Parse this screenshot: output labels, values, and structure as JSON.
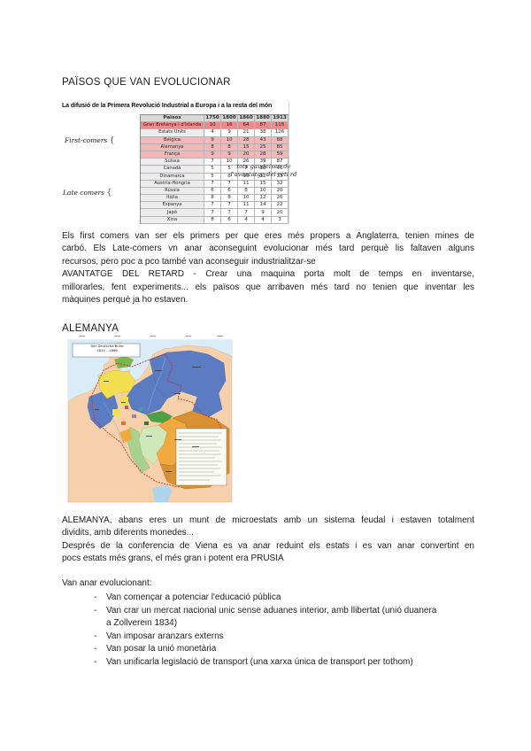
{
  "doc": {
    "title": "PAÏSOS QUE VAN EVOLUCIONAR",
    "alemanya_heading": "ALEMANYA"
  },
  "table_figure": {
    "title": "La difusió de la Primera Revolució Industrial a Europa i a la resta del món",
    "columns": [
      "Països",
      "1750",
      "1800",
      "1860",
      "1880",
      "1913"
    ],
    "rows": [
      {
        "name": "Gran Bretanya i d'Irlanda",
        "values": [
          10,
          16,
          64,
          87,
          115
        ],
        "highlight": "strong"
      },
      {
        "name": "Estats Units",
        "values": [
          4,
          9,
          21,
          38,
          126
        ],
        "highlight": "none"
      },
      {
        "name": "Bèlgica",
        "values": [
          9,
          10,
          28,
          43,
          88
        ],
        "highlight": "red"
      },
      {
        "name": "Alemanya",
        "values": [
          8,
          8,
          15,
          25,
          85
        ],
        "highlight": "red"
      },
      {
        "name": "França",
        "values": [
          9,
          9,
          20,
          28,
          59
        ],
        "highlight": "red"
      },
      {
        "name": "Suïssa",
        "values": [
          7,
          10,
          26,
          39,
          87
        ],
        "highlight": "none"
      },
      {
        "name": "Canadà",
        "values": [
          5,
          5,
          7,
          10,
          46
        ],
        "highlight": "none"
      },
      {
        "name": "Dinamarca",
        "values": [
          5,
          8,
          10,
          12,
          33
        ],
        "highlight": "none"
      },
      {
        "name": "Àustria-Hongria",
        "values": [
          7,
          7,
          11,
          15,
          32
        ],
        "highlight": "none"
      },
      {
        "name": "Rússia",
        "values": [
          6,
          6,
          8,
          10,
          20
        ],
        "highlight": "none"
      },
      {
        "name": "Itàlia",
        "values": [
          8,
          8,
          10,
          12,
          26
        ],
        "highlight": "none"
      },
      {
        "name": "Espanya",
        "values": [
          7,
          7,
          11,
          14,
          22
        ],
        "highlight": "none"
      },
      {
        "name": "Japó",
        "values": [
          7,
          7,
          7,
          9,
          20
        ],
        "highlight": "none"
      },
      {
        "name": "Xina",
        "values": [
          8,
          6,
          4,
          4,
          3
        ],
        "highlight": "none"
      }
    ],
    "group_label_first": "First-comers",
    "group_label_late": "Late comers",
    "brace": "{",
    "annotation": "tots gaudeixen de\nl'avantatge del retard"
  },
  "map_figure": {
    "title_box": "Der Deutsche Bund\n1815 – 1866"
  },
  "paragraphs": {
    "p1": "Els first comers van ser els primers per que eres més propers a Anglaterra, tenien mines de\ncarbó. Els Late-comers vn anar aconseguint evolucionar més tard perquè lis faltaven alguns\nrecursos, pero poc a pco també van aconseguir industrialitzar-se\nAVANTATGE DEL RETARD - Crear una maquina porta molt de temps en inventarse,\nmillorarles, fent experiments... els països que arribaven més tard no tenien que inventar les\nmàquines perquè ja ho estaven.",
    "p2": "ALEMANYA, abans eres un munt de microestats amb un sistema feudal i estaven totalment\ndividits, amb diferents monedes...\nDesprés de la conferencia de Viena es va anar reduint els estats i es van anar convertint en\npocs estats més grans, el més gran i potent era PRUSIA",
    "list_intro": "Van anar evolucionant:",
    "list_dash": "-",
    "bullets": [
      "Van començar a potenciar l'educació pública",
      "Van crar un mercat nacional unic sense aduanes interior, amb llibertat (unió duanera\na Zollverein 1834)",
      "Van imposar aranzars externs",
      "Van posar la unió monetària",
      "Van unificarla legislació de transport (una xarxa única de transport per tothom)"
    ]
  },
  "colors": {
    "highlight_strong": "#ea8a8c",
    "highlight_red": "#f6b5b6",
    "map_prussia_blue": "#5b7cc2",
    "map_bavaria_orange": "#efa93e",
    "map_austria_tan": "#d79032",
    "map_hannover_yellow": "#f2df4f",
    "map_sea_blue": "#d9ecf8",
    "map_land_salmon": "#f6d0aa",
    "map_border_red": "#cc3333"
  }
}
